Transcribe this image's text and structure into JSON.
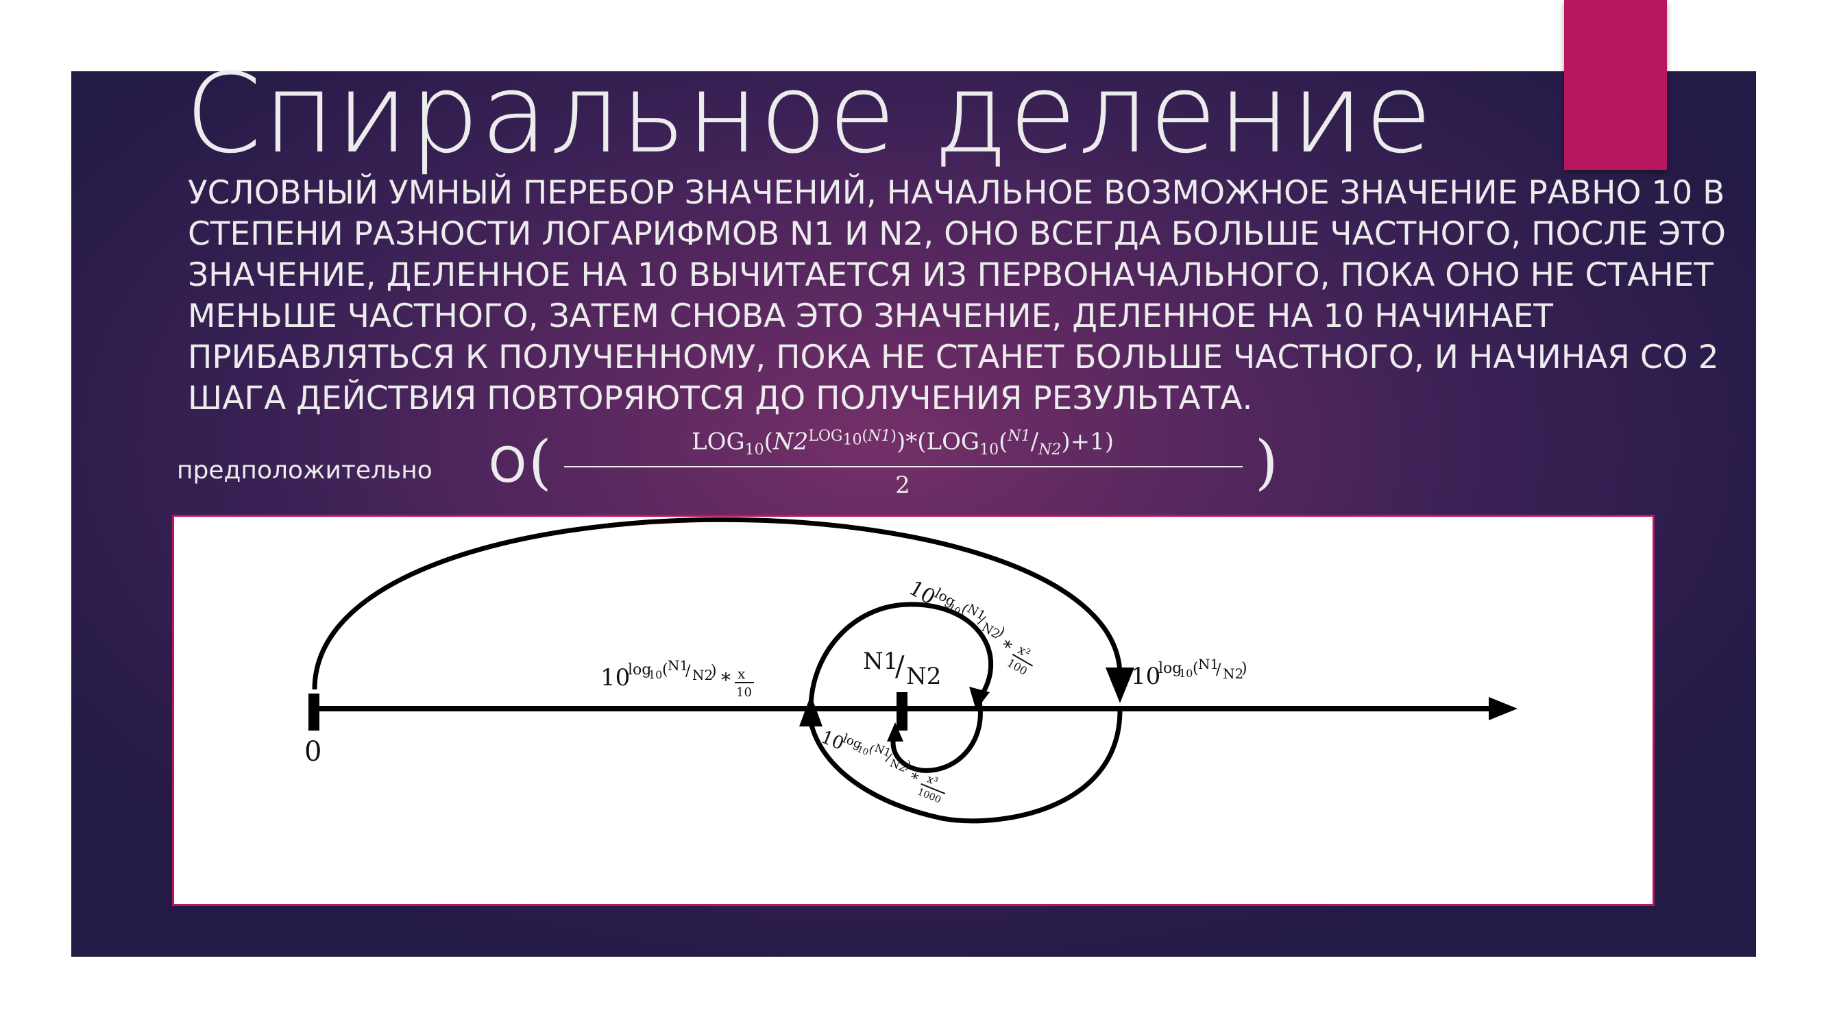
{
  "title": "Спиральное деление",
  "description": "Условный умный перебор значений, начальное возможное значение равно 10 в степени разности логарифмов N1 и N2, оно всегда больше частного, после это значение, деленное на 10 вычитается из первоначального, пока оно не станет меньше частного, затем снова это значение, деленное на 10 начинает прибавляться к полученному, пока не станет больше частного, и начиная со 2 шага действия повторяются до получения результата.",
  "complexity": {
    "label": "предположительно",
    "big_o": "O",
    "numerator": {
      "log": "LOG",
      "base": "10",
      "n2": "N2",
      "n1": "N1",
      "plus_one": "+1"
    },
    "denominator": "2"
  },
  "diagram": {
    "origin_label": "0",
    "quotient_label": {
      "n1": "N1",
      "n2": "N2"
    },
    "start_value": {
      "base": "10",
      "log": "log",
      "sub": "10",
      "n1": "N1",
      "n2": "N2"
    },
    "step1": {
      "factor": "x",
      "divisor": "10"
    },
    "step2": {
      "factor": "x²",
      "divisor": "100"
    },
    "step3": {
      "factor": "x³",
      "divisor": "1000"
    }
  }
}
